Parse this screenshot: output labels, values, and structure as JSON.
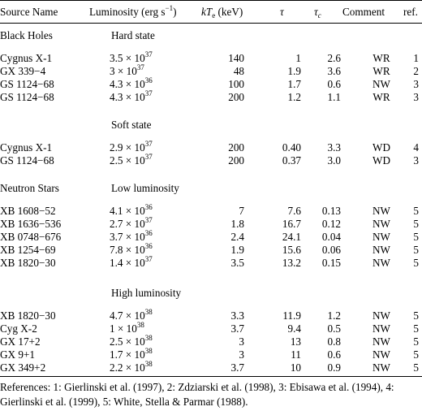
{
  "header": {
    "source": "Source Name",
    "luminosity": "Luminosity (erg s",
    "luminosity_exp": "−1",
    "luminosity_close": ")",
    "kte_k": "kT",
    "kte_sub": "e",
    "kte_unit": " (keV)",
    "tau": "τ",
    "tau_c": "τ",
    "tau_c_sub": "c",
    "comment": "Comment",
    "ref": "ref."
  },
  "sections": {
    "black_holes": "Black Holes",
    "hard_state": "Hard state",
    "soft_state": "Soft state",
    "neutron_stars": "Neutron Stars",
    "low_lum": "Low luminosity",
    "high_lum": "High luminosity"
  },
  "rows": [
    {
      "name": "Cygnus X-1",
      "lum_m": "3.5 × 10",
      "lum_e": "37",
      "kte": "140",
      "tau": "1",
      "tauc": "2.6",
      "comment": "WR",
      "ref": "1"
    },
    {
      "name": "GX 339−4",
      "lum_m": "3 × 10",
      "lum_e": "37",
      "kte": "48",
      "tau": "1.9",
      "tauc": "3.6",
      "comment": "WR",
      "ref": "2"
    },
    {
      "name": "GS 1124−68",
      "lum_m": "4.3 × 10",
      "lum_e": "36",
      "kte": "100",
      "tau": "1.7",
      "tauc": "0.6",
      "comment": "NW",
      "ref": "3"
    },
    {
      "name": "GS 1124−68",
      "lum_m": "4.3 × 10",
      "lum_e": "37",
      "kte": "200",
      "tau": "1.2",
      "tauc": "1.1",
      "comment": "WR",
      "ref": "3"
    },
    {
      "name": "Cygnus X-1",
      "lum_m": "2.9 × 10",
      "lum_e": "37",
      "kte": "200",
      "tau": "0.40",
      "tauc": "3.3",
      "comment": "WD",
      "ref": "4"
    },
    {
      "name": "GS 1124−68",
      "lum_m": "2.5 × 10",
      "lum_e": "37",
      "kte": "200",
      "tau": "0.37",
      "tauc": "3.0",
      "comment": "WD",
      "ref": "3"
    },
    {
      "name": "XB 1608−52",
      "lum_m": "4.1 × 10",
      "lum_e": "36",
      "kte": "7",
      "tau": "7.6",
      "tauc": "0.13",
      "comment": "NW",
      "ref": "5"
    },
    {
      "name": "XB 1636−536",
      "lum_m": "2.7 × 10",
      "lum_e": "37",
      "kte": "1.8",
      "tau": "16.7",
      "tauc": "0.12",
      "comment": "NW",
      "ref": "5"
    },
    {
      "name": "XB 0748−676",
      "lum_m": "3.7 × 10",
      "lum_e": "36",
      "kte": "2.4",
      "tau": "24.1",
      "tauc": "0.04",
      "comment": "NW",
      "ref": "5"
    },
    {
      "name": "XB 1254−69",
      "lum_m": "7.8 × 10",
      "lum_e": "36",
      "kte": "1.9",
      "tau": "15.6",
      "tauc": "0.06",
      "comment": "NW",
      "ref": "5"
    },
    {
      "name": "XB 1820−30",
      "lum_m": "1.4 × 10",
      "lum_e": "37",
      "kte": "3.5",
      "tau": "13.2",
      "tauc": "0.15",
      "comment": "NW",
      "ref": "5"
    },
    {
      "name": "XB 1820−30",
      "lum_m": "4.7 × 10",
      "lum_e": "38",
      "kte": "3.3",
      "tau": "11.9",
      "tauc": "1.2",
      "comment": "NW",
      "ref": "5"
    },
    {
      "name": "Cyg X-2",
      "lum_m": "1 × 10",
      "lum_e": "38",
      "kte": "3.7",
      "tau": "9.4",
      "tauc": "0.5",
      "comment": "NW",
      "ref": "5"
    },
    {
      "name": "GX 17+2",
      "lum_m": "2.5 × 10",
      "lum_e": "38",
      "kte": "3",
      "tau": "13",
      "tauc": "0.8",
      "comment": "NW",
      "ref": "5"
    },
    {
      "name": "GX 9+1",
      "lum_m": "1.7 × 10",
      "lum_e": "38",
      "kte": "3",
      "tau": "11",
      "tauc": "0.6",
      "comment": "NW",
      "ref": "5"
    },
    {
      "name": "GX 349+2",
      "lum_m": "2.2 × 10",
      "lum_e": "38",
      "kte": "3.7",
      "tau": "10",
      "tauc": "0.9",
      "comment": "NW",
      "ref": "5"
    }
  ],
  "references": "References: 1: Gierlinski et al. (1997), 2: Zdziarski et al. (1998), 3: Ebisawa et al. (1994), 4: Gierlinski et al. (1999), 5: White, Stella & Parmar (1988)."
}
